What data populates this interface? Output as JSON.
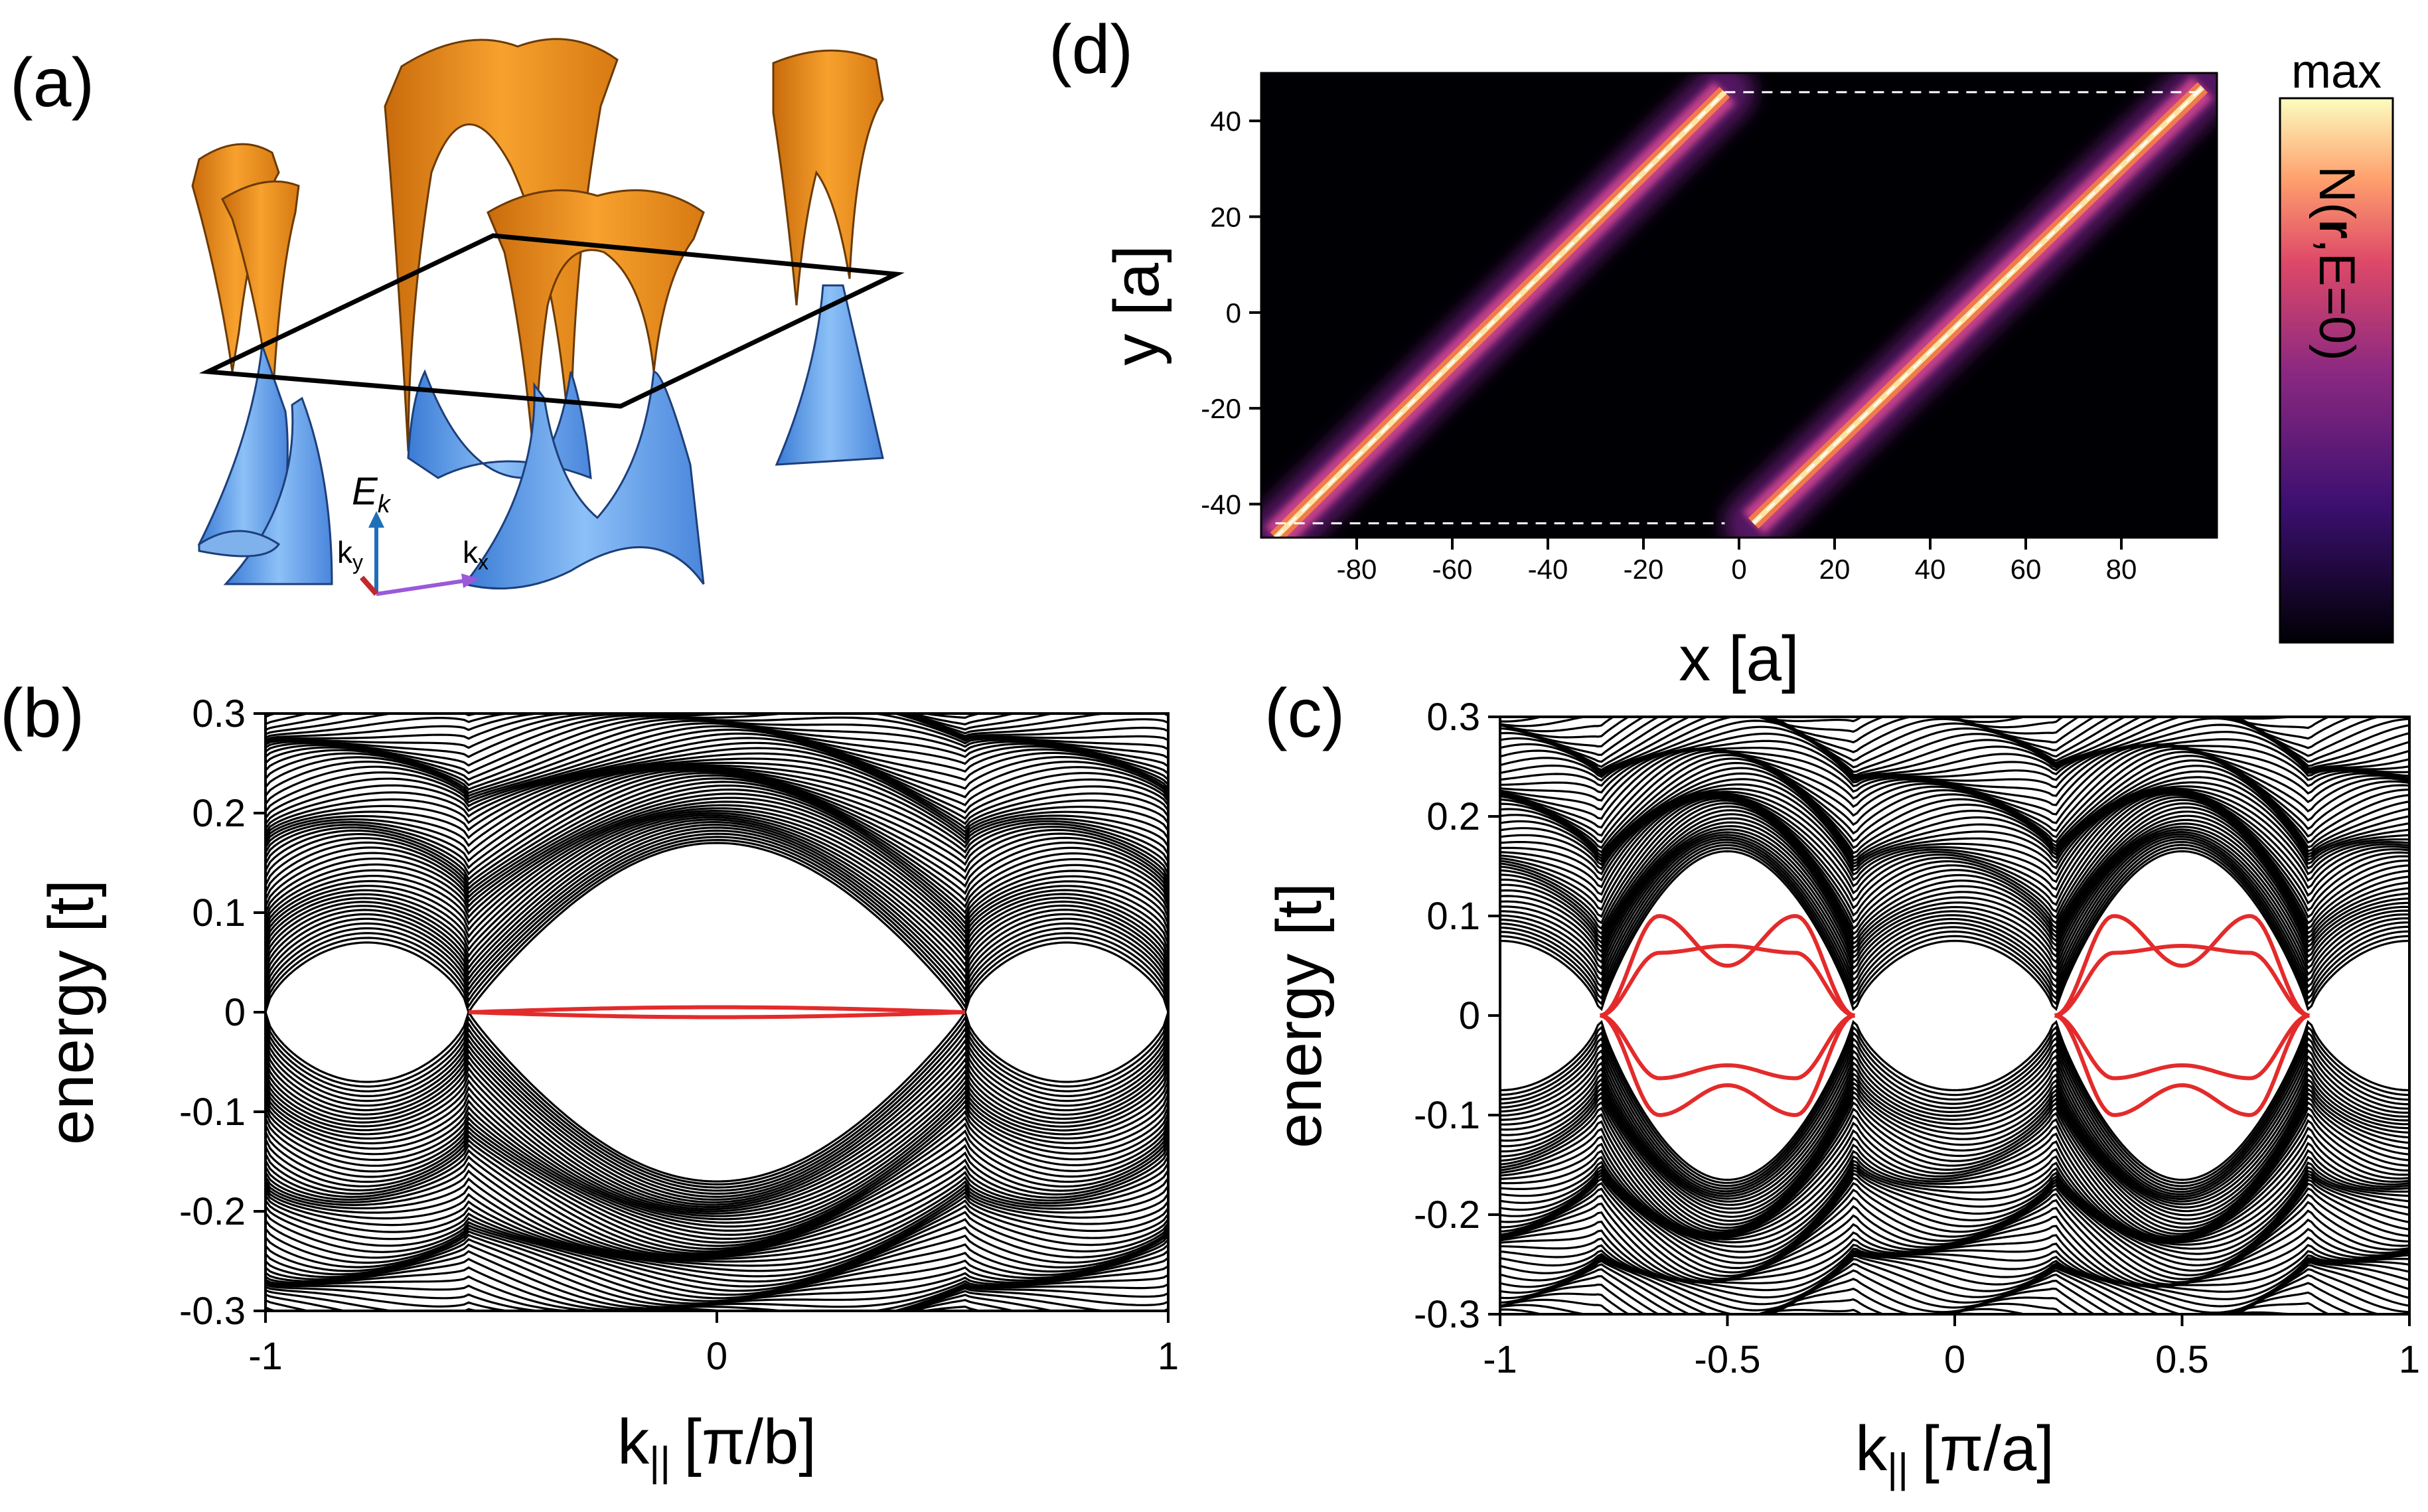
{
  "figure": {
    "panel_a": {
      "label": "(a)",
      "energy_axis": "E",
      "energy_axis_sub": "k",
      "ky_axis": "k",
      "ky_axis_sub": "y",
      "kx_axis": "k",
      "kx_axis_sub": "x",
      "colors": {
        "upper_band": "#f39a1d",
        "lower_band": "#5b9bea",
        "plane": "#000000",
        "ek_arrow": "#1f6fb8",
        "ky_arrow": "#c0282c",
        "kx_arrow": "#9b59d9"
      }
    },
    "panel_d": {
      "label": "(d)",
      "colorbar_max": "max",
      "colorbar_title_a": "N(",
      "colorbar_title_bold": "r",
      "colorbar_title_b": ",E=0)",
      "colors": {
        "background": "#000004",
        "mid": "#b2338b",
        "high": "#fcfdbf"
      }
    },
    "panel_b": {
      "label": "(b)",
      "bulk_color": "#000000",
      "edge_color": "#e32b2b"
    },
    "panel_c": {
      "label": "(c)",
      "bulk_color": "#000000",
      "edge_color": "#e32b2b"
    }
  },
  "chart_data": [
    {
      "id": "b",
      "type": "line",
      "title": "",
      "xlabel": "k",
      "xlabel_sub": "||",
      "xlabel_unit": "[π/b]",
      "ylabel": "energy [t]",
      "xlim": [
        -1,
        1
      ],
      "ylim": [
        -0.3,
        0.3
      ],
      "xticks": [
        "-1",
        "0",
        "1"
      ],
      "xtick_values": [
        -1,
        0,
        1
      ],
      "yticks": [
        "0.3",
        "0.2",
        "0.1",
        "0",
        "-0.1",
        "-0.2",
        "-0.3"
      ],
      "ytick_values": [
        0.3,
        0.2,
        0.1,
        0,
        -0.1,
        -0.2,
        -0.3
      ],
      "series": [
        {
          "name": "bulk bands",
          "color": "#000000",
          "band_gap_min_center": 0.17,
          "band_gap_min_edge": 0.0,
          "inner_gap_at_edges": 0.07,
          "node_k": [
            -0.55,
            0.55
          ],
          "n_lines": 60
        },
        {
          "name": "edge states",
          "color": "#e32b2b",
          "x": [
            -0.55,
            0,
            0.55
          ],
          "upper": [
            0.0,
            0.005,
            0.0
          ],
          "lower": [
            0.0,
            -0.005,
            0.0
          ]
        }
      ]
    },
    {
      "id": "c",
      "type": "line",
      "title": "",
      "xlabel": "k",
      "xlabel_sub": "||",
      "xlabel_unit": "[π/a]",
      "ylabel": "energy [t]",
      "xlim": [
        -1,
        1
      ],
      "ylim": [
        -0.3,
        0.3
      ],
      "xticks": [
        "-1",
        "-0.5",
        "0",
        "0.5",
        "1"
      ],
      "xtick_values": [
        -1,
        -0.5,
        0,
        0.5,
        1
      ],
      "yticks": [
        "0.3",
        "0.2",
        "0.1",
        "0",
        "-0.1",
        "-0.2",
        "-0.3"
      ],
      "ytick_values": [
        0.3,
        0.2,
        0.1,
        0,
        -0.1,
        -0.2,
        -0.3
      ],
      "series": [
        {
          "name": "bulk bands",
          "color": "#000000",
          "gap_top": 0.165,
          "gap_node_k": [
            -0.78,
            -0.22,
            0.22,
            0.78
          ],
          "outer_gap": 0.075,
          "n_lines": 60
        },
        {
          "name": "edge state 1",
          "color": "#e32b2b",
          "x": [
            -0.78,
            -0.65,
            -0.5,
            -0.35,
            -0.22
          ],
          "values": [
            0.0,
            0.1,
            0.05,
            0.1,
            0.0
          ]
        },
        {
          "name": "edge state 2",
          "color": "#e32b2b",
          "x": [
            -0.78,
            -0.65,
            -0.5,
            -0.35,
            -0.22
          ],
          "values": [
            0.0,
            0.063,
            0.07,
            0.063,
            0.0
          ]
        },
        {
          "name": "edge state 3",
          "color": "#e32b2b",
          "x": [
            -0.78,
            -0.65,
            -0.5,
            -0.35,
            -0.22
          ],
          "values": [
            0.0,
            -0.063,
            -0.05,
            -0.063,
            0.0
          ]
        },
        {
          "name": "edge state 4",
          "color": "#e32b2b",
          "x": [
            -0.78,
            -0.65,
            -0.5,
            -0.35,
            -0.22
          ],
          "values": [
            0.0,
            -0.1,
            -0.07,
            -0.1,
            0.0
          ]
        }
      ]
    },
    {
      "id": "d",
      "type": "heatmap",
      "title": "",
      "xlabel": "x [a]",
      "ylabel": "y [a]",
      "xlim": [
        -100,
        100
      ],
      "ylim": [
        -47,
        50
      ],
      "xticks": [
        "-80",
        "-60",
        "-40",
        "-20",
        "0",
        "20",
        "40",
        "60",
        "80"
      ],
      "xtick_values": [
        -80,
        -60,
        -40,
        -20,
        0,
        20,
        40,
        60,
        80
      ],
      "yticks": [
        "40",
        "20",
        "0",
        "-20",
        "-40"
      ],
      "ytick_values": [
        40,
        20,
        0,
        -20,
        -40
      ],
      "colorbar_label": "N(r,E=0)",
      "colorbar_max_label": "max",
      "domain_walls": [
        {
          "x1": -97,
          "y1": -47,
          "x2": -3,
          "y2": 46
        },
        {
          "x1": 3,
          "y1": -44,
          "x2": 97,
          "y2": 47
        }
      ],
      "dashed_outline": [
        {
          "x1": -97,
          "y1": -44,
          "x2": -3,
          "y2": -44
        },
        {
          "x1": -3,
          "y1": 46,
          "x2": 96,
          "y2": 46
        }
      ]
    }
  ]
}
